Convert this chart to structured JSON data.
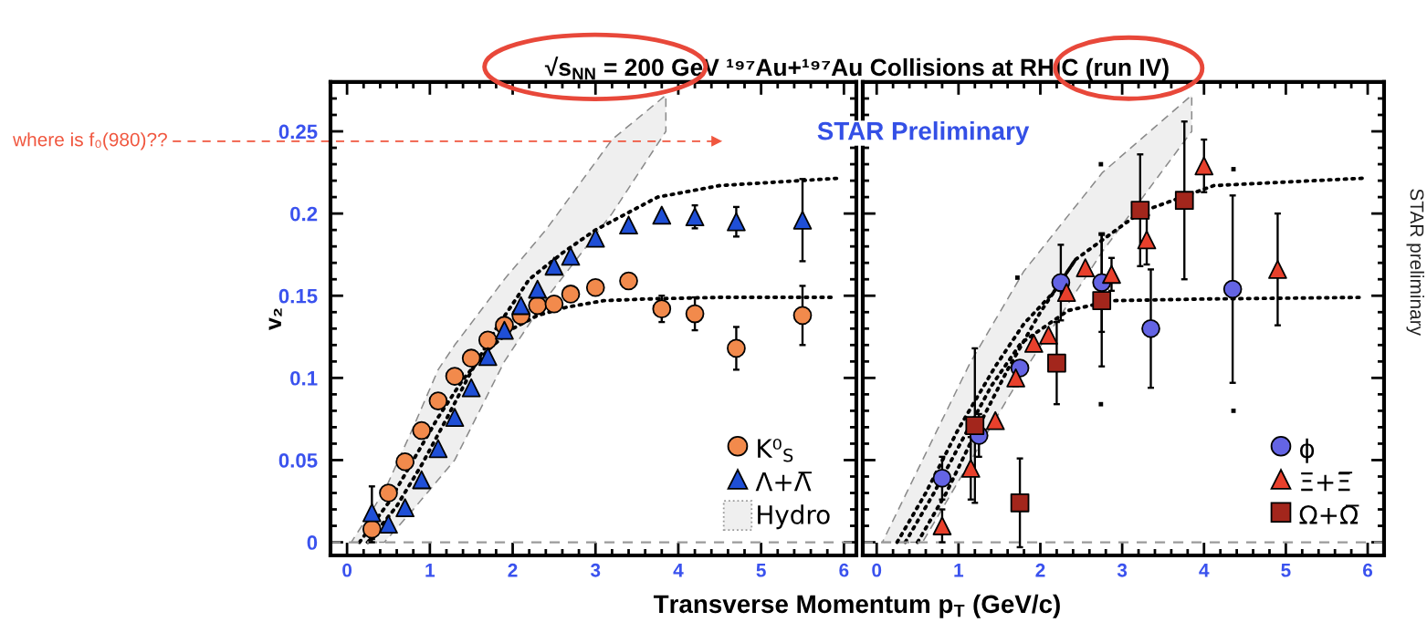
{
  "chart_data": [
    {
      "type": "scatter",
      "title": "√s$_{NN}$ = 200 GeV ¹⁹⁷Au+¹⁹⁷Au Collisions at RHIC (run IV)",
      "xlabel": "Transverse Momentum p$_{T}$ (GeV/c)",
      "ylabel": "v₂",
      "annotations": [
        "STAR Preliminary"
      ],
      "xlim": [
        -0.2,
        6.15
      ],
      "ylim": [
        -0.008,
        0.28
      ],
      "xticks": [
        0,
        1,
        2,
        3,
        4,
        5,
        6
      ],
      "yticks": [
        0,
        0.05,
        0.1,
        0.15,
        0.2,
        0.25
      ],
      "legend": "bottom right",
      "ref_lines": [
        {
          "axis": "y",
          "value": 0,
          "color": "#9a9a9a",
          "line_style": "dashed"
        },
        {
          "axis": "y",
          "value": 0.244,
          "label": "where is f₀(980)??",
          "color": "#f0563e",
          "line_style": "dashed"
        }
      ],
      "series": [
        {
          "name": "K⁰$_{S}$",
          "type": "scatter",
          "marker": "circle",
          "color": "#f28a4c",
          "x": [
            0.3,
            0.5,
            0.7,
            0.9,
            1.1,
            1.3,
            1.5,
            1.7,
            1.9,
            2.1,
            2.3,
            2.5,
            2.7,
            3.0,
            3.4,
            3.8,
            4.2,
            4.7,
            5.5
          ],
          "values": [
            0.008,
            0.03,
            0.049,
            0.068,
            0.086,
            0.101,
            0.112,
            0.123,
            0.132,
            0.138,
            0.144,
            0.145,
            0.151,
            0.155,
            0.159,
            0.142,
            0.139,
            0.118,
            0.138
          ],
          "errors": [
            0.008,
            null,
            null,
            null,
            null,
            null,
            null,
            null,
            null,
            null,
            null,
            null,
            null,
            null,
            null,
            0.008,
            0.01,
            0.013,
            0.018
          ]
        },
        {
          "name": "Λ+Λ̅",
          "type": "scatter",
          "marker": "triangle",
          "color": "#1f4fd6",
          "x": [
            0.3,
            0.5,
            0.7,
            0.9,
            1.1,
            1.3,
            1.5,
            1.7,
            1.9,
            2.1,
            2.3,
            2.5,
            2.7,
            3.0,
            3.4,
            3.8,
            4.2,
            4.7,
            5.5
          ],
          "values": [
            0.018,
            0.011,
            0.021,
            0.038,
            0.057,
            0.076,
            0.094,
            0.113,
            0.129,
            0.144,
            0.154,
            0.168,
            0.174,
            0.185,
            0.193,
            0.199,
            0.198,
            0.195,
            0.196
          ],
          "errors": [
            0.016,
            null,
            null,
            null,
            null,
            null,
            null,
            null,
            null,
            null,
            null,
            null,
            null,
            null,
            null,
            null,
            0.007,
            0.009,
            0.025
          ]
        },
        {
          "name": "Hydro",
          "type": "line",
          "color": "#efefef",
          "x": [
            0.05,
            0.45,
            0.8,
            1.1,
            1.3,
            1.9,
            2.4,
            3.2,
            3.85
          ],
          "values": [
            null,
            null,
            null,
            null,
            null,
            null,
            null,
            null,
            null
          ],
          "lower": [
            0,
            0,
            0.02,
            0.038,
            0.05,
            0.11,
            0.148,
            0.2,
            0.25
          ],
          "upper": [
            0,
            0.031,
            0.07,
            0.105,
            0.12,
            0.16,
            0.19,
            0.245,
            0.272
          ]
        },
        {
          "type": "line",
          "color": "#000000",
          "line_style": "dotted",
          "x": [
            0.15,
            0.5,
            0.8,
            1.1,
            1.4,
            1.7,
            2.0,
            2.3,
            2.65,
            3.1,
            3.6,
            4.5,
            5.87
          ],
          "values": [
            0,
            0.024,
            0.05,
            0.076,
            0.099,
            0.117,
            0.13,
            0.138,
            0.143,
            0.147,
            0.148,
            0.149,
            0.149
          ]
        },
        {
          "type": "line",
          "color": "#000000",
          "line_style": "dotted",
          "x": [
            0.25,
            0.6,
            0.9,
            1.2,
            1.5,
            1.8,
            2.2,
            2.6,
            3.0,
            3.75,
            4.5,
            5.95
          ],
          "values": [
            0,
            0.022,
            0.047,
            0.075,
            0.104,
            0.13,
            0.16,
            0.176,
            0.19,
            0.21,
            0.217,
            0.2215
          ]
        }
      ]
    },
    {
      "type": "scatter",
      "annotations": [
        "STAR preliminary"
      ],
      "xlim": [
        -0.17,
        6.2
      ],
      "ylim": [
        -0.008,
        0.28
      ],
      "xticks": [
        0,
        1,
        2,
        3,
        4,
        5,
        6
      ],
      "yticks": [
        0,
        0.05,
        0.1,
        0.15,
        0.2,
        0.25
      ],
      "tick_labels": "x",
      "legend": "bottom right",
      "ref_lines": [
        {
          "axis": "y",
          "value": 0,
          "color": "#9a9a9a",
          "line_style": "dashed"
        }
      ],
      "series": [
        {
          "type": "line",
          "color": "#efefef",
          "x": [
            0.07,
            0.56,
            1.14,
            1.8,
            2.76,
            3.85
          ],
          "values": [
            null,
            null,
            null,
            null,
            null,
            null
          ],
          "lower": [
            0,
            0,
            0.049,
            0.104,
            0.177,
            0.25
          ],
          "upper": [
            0,
            0.05,
            0.109,
            0.165,
            0.225,
            0.272
          ]
        },
        {
          "type": "line",
          "color": "#000000",
          "line_style": "dotted",
          "x": [
            0.25,
            0.6,
            1.0,
            1.45,
            1.8,
            2.16,
            2.43,
            3.23,
            4.12,
            5.95
          ],
          "values": [
            0,
            0.03,
            0.069,
            0.107,
            0.133,
            0.152,
            0.172,
            0.201,
            0.217,
            0.2215
          ]
        },
        {
          "type": "line",
          "color": "#000000",
          "line_style": "dotted",
          "x": [
            0.35,
            0.7,
            1.0,
            1.4,
            1.76,
            2.34,
            2.88,
            4.0,
            5.95
          ],
          "values": [
            0,
            0.03,
            0.058,
            0.095,
            0.121,
            0.141,
            0.147,
            0.148,
            0.149
          ]
        },
        {
          "type": "line",
          "color": "#000000",
          "line_style": "dotted",
          "x": [
            0.5,
            0.85,
            1.2,
            1.6,
            2.0,
            2.43
          ],
          "values": [
            0,
            0.03,
            0.066,
            0.105,
            0.14,
            0.172
          ]
        },
        {
          "type": "scatter",
          "marker": "square",
          "color": "#000000",
          "x": [
            1.72,
            2.74,
            2.74,
            4.36,
            4.36
          ],
          "values": [
            0.161,
            0.23,
            0.084,
            0.227,
            0.08
          ]
        },
        {
          "name": "ϕ",
          "type": "scatter",
          "marker": "circle",
          "color": "#6464e4",
          "x": [
            0.8,
            1.25,
            1.75,
            2.25,
            2.75,
            3.35,
            4.35
          ],
          "values": [
            0.039,
            0.065,
            0.106,
            0.158,
            0.158,
            0.13,
            0.154
          ],
          "errors": [
            0.013,
            0.013,
            null,
            0.023,
            0.03,
            0.036,
            0.057
          ]
        },
        {
          "name": "Ξ+Ξ̅",
          "type": "scatter",
          "marker": "triangle",
          "color": "#e8402c",
          "x": [
            0.8,
            1.15,
            1.45,
            1.7,
            1.92,
            2.1,
            2.32,
            2.55,
            2.87,
            3.3,
            4.0,
            4.9
          ],
          "values": [
            0.01,
            0.045,
            0.074,
            0.1,
            0.121,
            0.126,
            0.152,
            0.167,
            0.163,
            0.184,
            0.229,
            0.166
          ],
          "errors": [
            0.01,
            0.019,
            null,
            0.005,
            null,
            null,
            null,
            null,
            0.01,
            0.015,
            0.016,
            0.034
          ]
        },
        {
          "name": "Ω+Ω̅",
          "type": "scatter",
          "marker": "square",
          "color": "#a3261c",
          "x": [
            1.2,
            1.75,
            2.2,
            2.75,
            3.22,
            3.76
          ],
          "values": [
            0.071,
            0.024,
            0.109,
            0.147,
            0.202,
            0.208
          ],
          "errors": [
            0.047,
            0.027,
            0.025,
            0.04,
            0.034,
            0.048
          ]
        }
      ]
    }
  ]
}
